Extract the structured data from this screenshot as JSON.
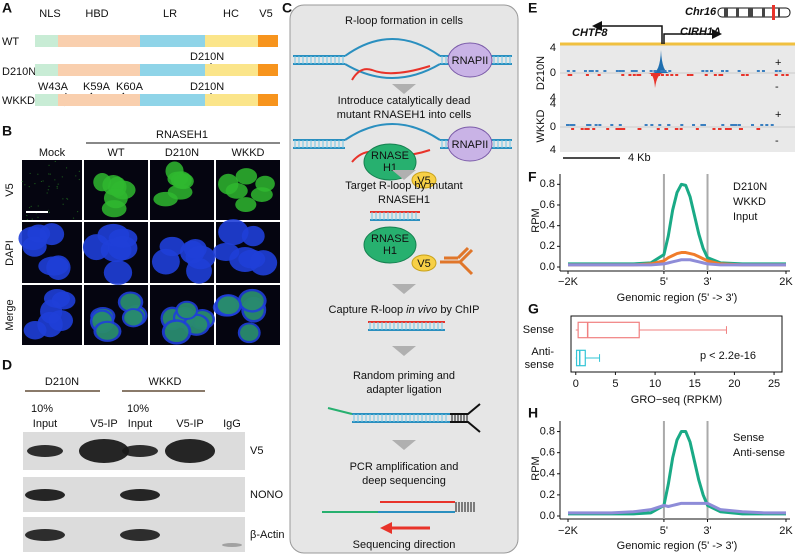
{
  "panel_labels": [
    "A",
    "B",
    "C",
    "D",
    "E",
    "F",
    "G",
    "H"
  ],
  "panel_a": {
    "domains": [
      "NLS",
      "HBD",
      "LR",
      "HC",
      "V5"
    ],
    "rows": [
      "WT",
      "D210N",
      "WKKD"
    ],
    "mutations_d210n": [
      "D210N"
    ],
    "mutations_wkkd": [
      "W43A",
      "K59A",
      "K60A",
      "D210N"
    ]
  },
  "panel_b": {
    "header": "RNASEH1",
    "columns": [
      "Mock",
      "WT",
      "D210N",
      "WKKD"
    ],
    "rows": [
      "V5",
      "DAPI",
      "Merge"
    ]
  },
  "panel_c": {
    "step_lines": [
      "R-loop formation in cells",
      "Introduce catalytically dead",
      "mutant RNASEH1 into cells",
      "Target R-loop by mutant",
      "RNASEH1",
      "Random priming and",
      "adapter ligation",
      "PCR amplification and",
      "deep sequencing",
      "Sequencing direction"
    ],
    "capture": {
      "before": "Capture R-loop",
      "italic": "in vivo",
      "after": "by ChIP"
    },
    "labels": {
      "rnapii": "RNAPII",
      "rnase": "RNASE",
      "h1": "H1",
      "v5": "V5"
    }
  },
  "panel_d": {
    "groups": [
      "D210N",
      "WKKD"
    ],
    "percent": "10%",
    "lanes": [
      "Input",
      "V5-IP",
      "Input",
      "V5-IP",
      "IgG"
    ],
    "blots": [
      "V5",
      "NONO",
      "β-Actin"
    ]
  },
  "panel_e": {
    "gene_left": "CHTF8",
    "chrom": "Chr16",
    "gene_right": "CIRH1A",
    "tracks": [
      "D210N",
      "WKKD"
    ],
    "axis_ticks": [
      "4",
      "0",
      "4"
    ],
    "strands": [
      "+",
      "-"
    ],
    "scale": "4 Kb"
  },
  "chart_data": [
    {
      "type": "line",
      "ylabel": "RPM",
      "xlabel": "Genomic region (5' -> 3')",
      "x": [
        0,
        10,
        20,
        30,
        38,
        44,
        46,
        48,
        50,
        52,
        54,
        56,
        58,
        60,
        62,
        64,
        70,
        80,
        90,
        100
      ],
      "xlim": [
        0,
        100
      ],
      "xticks": [
        {
          "value": 0,
          "label": "−2K"
        },
        {
          "value": 44,
          "label": "5'"
        },
        {
          "value": 64,
          "label": "3'"
        },
        {
          "value": 100,
          "label": "2K"
        }
      ],
      "vlines": [
        44,
        64
      ],
      "ylim": [
        0,
        0.9
      ],
      "yticks": [
        {
          "value": 0,
          "label": "0.0"
        },
        0.2,
        0.4,
        0.6,
        0.8
      ],
      "series": [
        {
          "name": "D210N",
          "color": "#1aaa86",
          "values": [
            0.03,
            0.03,
            0.03,
            0.03,
            0.04,
            0.12,
            0.3,
            0.55,
            0.72,
            0.8,
            0.79,
            0.68,
            0.5,
            0.32,
            0.18,
            0.09,
            0.04,
            0.03,
            0.03,
            0.03
          ]
        },
        {
          "name": "WKKD",
          "color": "#f07c2a",
          "values": [
            0.02,
            0.02,
            0.02,
            0.02,
            0.03,
            0.06,
            0.09,
            0.11,
            0.13,
            0.14,
            0.14,
            0.13,
            0.12,
            0.1,
            0.08,
            0.06,
            0.03,
            0.02,
            0.02,
            0.02
          ]
        },
        {
          "name": "Input",
          "color": "#8e8cd8",
          "values": [
            0.02,
            0.02,
            0.02,
            0.02,
            0.02,
            0.03,
            0.04,
            0.05,
            0.06,
            0.07,
            0.07,
            0.07,
            0.06,
            0.05,
            0.04,
            0.03,
            0.02,
            0.02,
            0.02,
            0.02
          ]
        }
      ]
    },
    {
      "type": "box",
      "xlabel": "GRO−seq (RPKM)",
      "annotation": "p < 2.2e-16",
      "categories": [
        "Sense",
        "Anti-sense"
      ],
      "xlim": [
        -0.6,
        26
      ],
      "xticks": [
        0,
        5,
        10,
        15,
        20,
        25
      ],
      "boxes": [
        {
          "color": "#f08080",
          "min": 0,
          "q1": 0.3,
          "median": 1.5,
          "q3": 8,
          "max": 19
        },
        {
          "color": "#33c5d6",
          "min": 0,
          "q1": 0.1,
          "median": 0.5,
          "q3": 1.2,
          "max": 3
        }
      ]
    },
    {
      "type": "line",
      "ylabel": "RPM",
      "xlabel": "Genomic region (5' -> 3')",
      "x": [
        0,
        10,
        20,
        30,
        38,
        44,
        46,
        48,
        50,
        52,
        54,
        56,
        58,
        60,
        62,
        64,
        70,
        80,
        90,
        100
      ],
      "xlim": [
        0,
        100
      ],
      "xticks": [
        {
          "value": 0,
          "label": "−2K"
        },
        {
          "value": 44,
          "label": "5'"
        },
        {
          "value": 64,
          "label": "3'"
        },
        {
          "value": 100,
          "label": "2K"
        }
      ],
      "vlines": [
        44,
        64
      ],
      "ylim": [
        0,
        0.9
      ],
      "yticks": [
        {
          "value": 0,
          "label": "0.0"
        },
        0.2,
        0.4,
        0.6,
        0.8
      ],
      "series": [
        {
          "name": "Sense",
          "color": "#1aaa86",
          "values": [
            0.02,
            0.02,
            0.02,
            0.02,
            0.03,
            0.1,
            0.3,
            0.55,
            0.72,
            0.8,
            0.8,
            0.7,
            0.52,
            0.34,
            0.2,
            0.1,
            0.04,
            0.02,
            0.02,
            0.02
          ]
        },
        {
          "name": "Anti-sense",
          "color": "#8e8cd8",
          "values": [
            0.03,
            0.03,
            0.03,
            0.04,
            0.06,
            0.1,
            0.09,
            0.1,
            0.11,
            0.12,
            0.12,
            0.12,
            0.12,
            0.12,
            0.12,
            0.12,
            0.06,
            0.04,
            0.03,
            0.03
          ]
        }
      ]
    }
  ]
}
